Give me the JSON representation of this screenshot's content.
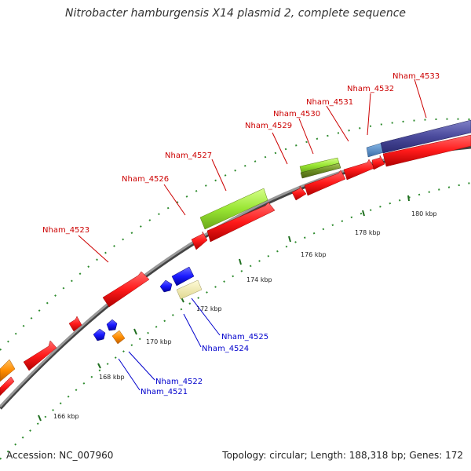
{
  "title": "Nitrobacter hamburgensis X14 plasmid 2, complete sequence",
  "accession": "Accession: NC_007960",
  "topology": "Topology: circular; Length: 188,318 bp; Genes: 172",
  "colors": {
    "backbone": "#888888",
    "tick": "#2e8b2e",
    "cds_red": "#ff1a1a",
    "cds_blue": "#1a1aff",
    "green": "#99e633",
    "olive": "#6b8e23",
    "orange": "#ff8c00",
    "pale_yellow": "#f5eeaa",
    "navy": "#4a4a9c",
    "steel_blue": "#4a88c8",
    "label_red": "#cc0000",
    "label_blue": "#0000cc"
  },
  "tick_labels": [
    "166 kbp",
    "168 kbp",
    "170 kbp",
    "172 kbp",
    "174 kbp",
    "176 kbp",
    "178 kbp",
    "180 kbp"
  ],
  "gene_labels_top": [
    "Nham_4523",
    "Nham_4526",
    "Nham_4527",
    "Nham_4529",
    "Nham_4530",
    "Nham_4531",
    "Nham_4532",
    "Nham_4533"
  ],
  "gene_labels_bottom": [
    "Nham_4525",
    "Nham_4524",
    "Nham_4522",
    "Nham_4521"
  ]
}
